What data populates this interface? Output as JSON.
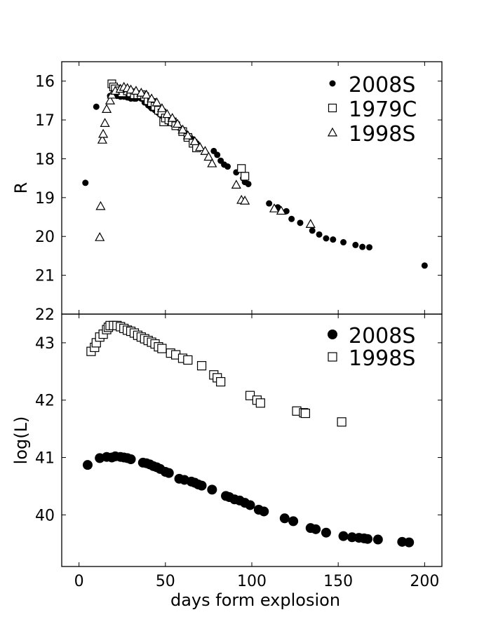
{
  "chart_data": [
    {
      "type": "scatter",
      "panel": "top",
      "ylabel": "R",
      "xlabel": "",
      "xlim": [
        -10,
        210
      ],
      "ylim": [
        22,
        15.5
      ],
      "y_inverted": true,
      "yticks": [
        16,
        17,
        18,
        19,
        20,
        21,
        22
      ],
      "legend": "top-right",
      "grid": false,
      "series": [
        {
          "name": "2008S",
          "marker": "filled-circle",
          "color": "#000000",
          "points": [
            [
              3.7,
              18.62
            ],
            [
              10,
              16.66
            ],
            [
              18,
              16.38
            ],
            [
              20,
              16.35
            ],
            [
              22,
              16.38
            ],
            [
              24,
              16.4
            ],
            [
              26,
              16.4
            ],
            [
              28,
              16.42
            ],
            [
              30,
              16.45
            ],
            [
              32,
              16.45
            ],
            [
              33,
              16.45
            ],
            [
              35,
              16.4
            ],
            [
              36,
              16.45
            ],
            [
              38,
              16.55
            ],
            [
              40,
              16.62
            ],
            [
              41,
              16.65
            ],
            [
              42,
              16.7
            ],
            [
              44,
              16.75
            ],
            [
              46,
              16.82
            ],
            [
              48,
              16.9
            ],
            [
              50,
              16.95
            ],
            [
              52,
              17.0
            ],
            [
              54,
              17.1
            ],
            [
              56,
              17.15
            ],
            [
              58,
              17.2
            ],
            [
              60,
              17.25
            ],
            [
              62,
              17.35
            ],
            [
              64,
              17.42
            ],
            [
              66,
              17.5
            ],
            [
              68,
              17.6
            ],
            [
              78,
              17.8
            ],
            [
              80,
              17.9
            ],
            [
              82,
              18.05
            ],
            [
              84,
              18.15
            ],
            [
              86,
              18.2
            ],
            [
              91,
              18.35
            ],
            [
              95,
              18.5
            ],
            [
              96,
              18.6
            ],
            [
              98,
              18.65
            ],
            [
              110,
              19.15
            ],
            [
              115,
              19.25
            ],
            [
              120,
              19.35
            ],
            [
              123,
              19.55
            ],
            [
              128,
              19.65
            ],
            [
              135,
              19.85
            ],
            [
              139,
              19.95
            ],
            [
              143,
              20.05
            ],
            [
              147,
              20.08
            ],
            [
              153,
              20.15
            ],
            [
              160,
              20.22
            ],
            [
              164,
              20.27
            ],
            [
              168,
              20.28
            ],
            [
              200,
              20.75
            ]
          ]
        },
        {
          "name": "1979C",
          "marker": "open-square",
          "color": "#000000",
          "points": [
            [
              19,
              16.07
            ],
            [
              20,
              16.15
            ],
            [
              21,
              16.2
            ],
            [
              23,
              16.25
            ],
            [
              25,
              16.3
            ],
            [
              28,
              16.25
            ],
            [
              30,
              16.3
            ],
            [
              32,
              16.35
            ],
            [
              34,
              16.35
            ],
            [
              36,
              16.35
            ],
            [
              38,
              16.4
            ],
            [
              40,
              16.5
            ],
            [
              42,
              16.55
            ],
            [
              44,
              16.65
            ],
            [
              46,
              16.75
            ],
            [
              48,
              16.82
            ],
            [
              49,
              17.05
            ],
            [
              50,
              16.95
            ],
            [
              52,
              17.0
            ],
            [
              54,
              17.05
            ],
            [
              56,
              17.15
            ],
            [
              60,
              17.3
            ],
            [
              63,
              17.45
            ],
            [
              66,
              17.6
            ],
            [
              68,
              17.72
            ],
            [
              94,
              18.25
            ],
            [
              96,
              18.45
            ]
          ]
        },
        {
          "name": "1998S",
          "marker": "open-triangle",
          "color": "#000000",
          "points": [
            [
              12,
              20.02
            ],
            [
              12.5,
              19.22
            ],
            [
              13.5,
              17.51
            ],
            [
              14,
              17.36
            ],
            [
              15,
              17.08
            ],
            [
              16,
              16.72
            ],
            [
              18,
              16.5
            ],
            [
              19,
              16.35
            ],
            [
              21,
              16.25
            ],
            [
              24,
              16.2
            ],
            [
              26,
              16.15
            ],
            [
              28,
              16.18
            ],
            [
              30,
              16.22
            ],
            [
              33,
              16.25
            ],
            [
              36,
              16.3
            ],
            [
              39,
              16.35
            ],
            [
              42,
              16.45
            ],
            [
              45,
              16.55
            ],
            [
              48,
              16.7
            ],
            [
              51,
              16.85
            ],
            [
              54,
              16.95
            ],
            [
              57,
              17.1
            ],
            [
              60,
              17.25
            ],
            [
              63,
              17.4
            ],
            [
              67,
              17.55
            ],
            [
              70,
              17.7
            ],
            [
              73,
              17.8
            ],
            [
              75,
              17.95
            ],
            [
              77,
              18.12
            ],
            [
              91,
              18.67
            ],
            [
              94,
              19.06
            ],
            [
              96,
              19.08
            ],
            [
              113,
              19.28
            ],
            [
              117,
              19.34
            ],
            [
              134,
              19.68
            ]
          ]
        }
      ]
    },
    {
      "type": "scatter",
      "panel": "bottom",
      "ylabel": "log(L)",
      "xlabel": "days form explosion",
      "xlim": [
        -10,
        210
      ],
      "ylim": [
        39.1,
        43.5
      ],
      "xticks": [
        0,
        50,
        100,
        150,
        200
      ],
      "yticks": [
        40,
        41,
        42,
        43
      ],
      "legend": "top-right",
      "grid": false,
      "series": [
        {
          "name": "2008S",
          "marker": "filled-circle",
          "color": "#000000",
          "points": [
            [
              5,
              40.87
            ],
            [
              12,
              40.99
            ],
            [
              16,
              41.01
            ],
            [
              19,
              41.0
            ],
            [
              21,
              41.02
            ],
            [
              24,
              41.01
            ],
            [
              26,
              41.0
            ],
            [
              28,
              40.99
            ],
            [
              30,
              40.97
            ],
            [
              37,
              40.91
            ],
            [
              39,
              40.9
            ],
            [
              41,
              40.88
            ],
            [
              43,
              40.85
            ],
            [
              45,
              40.83
            ],
            [
              47,
              40.8
            ],
            [
              50,
              40.75
            ],
            [
              52,
              40.73
            ],
            [
              58,
              40.63
            ],
            [
              61,
              40.61
            ],
            [
              65,
              40.58
            ],
            [
              67,
              40.56
            ],
            [
              69,
              40.53
            ],
            [
              71,
              40.51
            ],
            [
              77,
              40.44
            ],
            [
              85,
              40.33
            ],
            [
              87,
              40.31
            ],
            [
              90,
              40.27
            ],
            [
              93,
              40.25
            ],
            [
              96,
              40.21
            ],
            [
              99,
              40.17
            ],
            [
              104,
              40.09
            ],
            [
              107,
              40.06
            ],
            [
              119,
              39.94
            ],
            [
              124,
              39.89
            ],
            [
              134,
              39.77
            ],
            [
              137,
              39.75
            ],
            [
              143,
              39.69
            ],
            [
              153,
              39.63
            ],
            [
              158,
              39.61
            ],
            [
              162,
              39.6
            ],
            [
              165,
              39.59
            ],
            [
              167,
              39.58
            ],
            [
              173,
              39.57
            ],
            [
              187,
              39.53
            ],
            [
              191,
              39.52
            ]
          ]
        },
        {
          "name": "1998S",
          "marker": "open-square",
          "color": "#000000",
          "points": [
            [
              7,
              42.85
            ],
            [
              9,
              42.92
            ],
            [
              10,
              43.0
            ],
            [
              12,
              43.1
            ],
            [
              14,
              43.15
            ],
            [
              16,
              43.23
            ],
            [
              17,
              43.27
            ],
            [
              18,
              43.3
            ],
            [
              20,
              43.3
            ],
            [
              22,
              43.3
            ],
            [
              24,
              43.28
            ],
            [
              26,
              43.25
            ],
            [
              28,
              43.22
            ],
            [
              30,
              43.2
            ],
            [
              32,
              43.17
            ],
            [
              34,
              43.13
            ],
            [
              36,
              43.1
            ],
            [
              38,
              43.07
            ],
            [
              40,
              43.04
            ],
            [
              42,
              43.01
            ],
            [
              44,
              42.98
            ],
            [
              46,
              42.93
            ],
            [
              48,
              42.9
            ],
            [
              53,
              42.82
            ],
            [
              56,
              42.79
            ],
            [
              60,
              42.73
            ],
            [
              63,
              42.7
            ],
            [
              71,
              42.6
            ],
            [
              78,
              42.44
            ],
            [
              80,
              42.39
            ],
            [
              82,
              42.32
            ],
            [
              99,
              42.08
            ],
            [
              103,
              42.0
            ],
            [
              105,
              41.95
            ],
            [
              126,
              41.81
            ],
            [
              130,
              41.78
            ],
            [
              131,
              41.77
            ],
            [
              152,
              41.62
            ]
          ]
        }
      ]
    }
  ]
}
